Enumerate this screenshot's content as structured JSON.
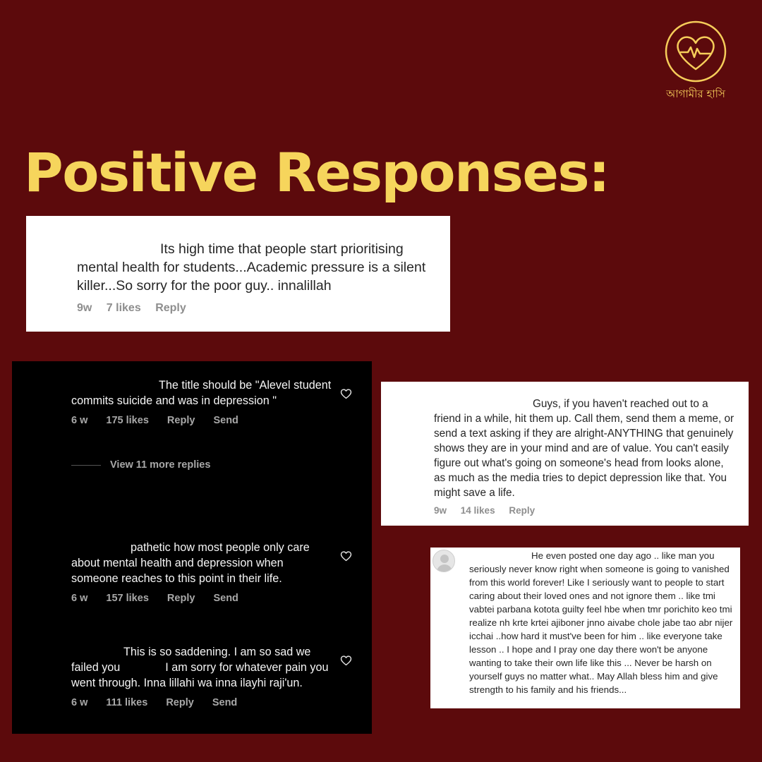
{
  "brand": {
    "name": "আগামীর হাসি",
    "color": "#f6cd5a",
    "icon": "heart-pulse-icon"
  },
  "heading": "Positive Responses:",
  "colors": {
    "background": "#5c0a0c",
    "heading": "#f6d55c"
  },
  "comment_top": {
    "text": "Its high time that people start prioritising mental health for students...Academic pressure is a silent killer...So sorry for the poor guy.. innalillah",
    "time": "9w",
    "likes": "7 likes",
    "reply": "Reply"
  },
  "dark_comments": [
    {
      "text": "The title should be \"Alevel student commits suicide and was in depression \"",
      "time": "6 w",
      "likes": "175 likes",
      "reply": "Reply",
      "send": "Send"
    },
    {
      "text": "pathetic how most people only care about mental health and depression when someone reaches to this point in their life.",
      "time": "6 w",
      "likes": "157 likes",
      "reply": "Reply",
      "send": "Send"
    },
    {
      "text_a": "This is so saddening. I am so sad we failed you",
      "text_b": "I am sorry for whatever pain you went through. Inna lillahi wa inna ilayhi raji'un.",
      "time": "6 w",
      "likes": "111 likes",
      "reply": "Reply",
      "send": "Send"
    }
  ],
  "view_replies": "View 11 more replies",
  "comment_right": {
    "text": "Guys, if you haven't reached out to a friend in a while, hit them up. Call them, send them a meme, or send a text asking if they are alright-ANYTHING that genuinely shows they are in your mind and are of value. You can't easily figure out what's going on someone's head from looks alone, as much as the media tries to depict depression like that. You might save a life.",
    "time": "9w",
    "likes": "14 likes",
    "reply": "Reply"
  },
  "comment_bottom": {
    "text": "He even posted one day ago .. like man you seriously never know right when someone is going to vanished from this world forever! Like I seriously want to people to start caring about their loved ones and not ignore them .. like tmi vabtei parbana kotota guilty feel hbe when tmr porichito keo tmi realize nh krte krtei ajiboner jnno aivabe chole jabe tao abr nijer icchai ..how hard it must've been for him .. like everyone take lesson .. I hope and I pray one day there won't be anyone wanting to take their own life like this ... Never be harsh on yourself guys no matter what.. May Allah bless him and give strength to his family and his friends..."
  }
}
